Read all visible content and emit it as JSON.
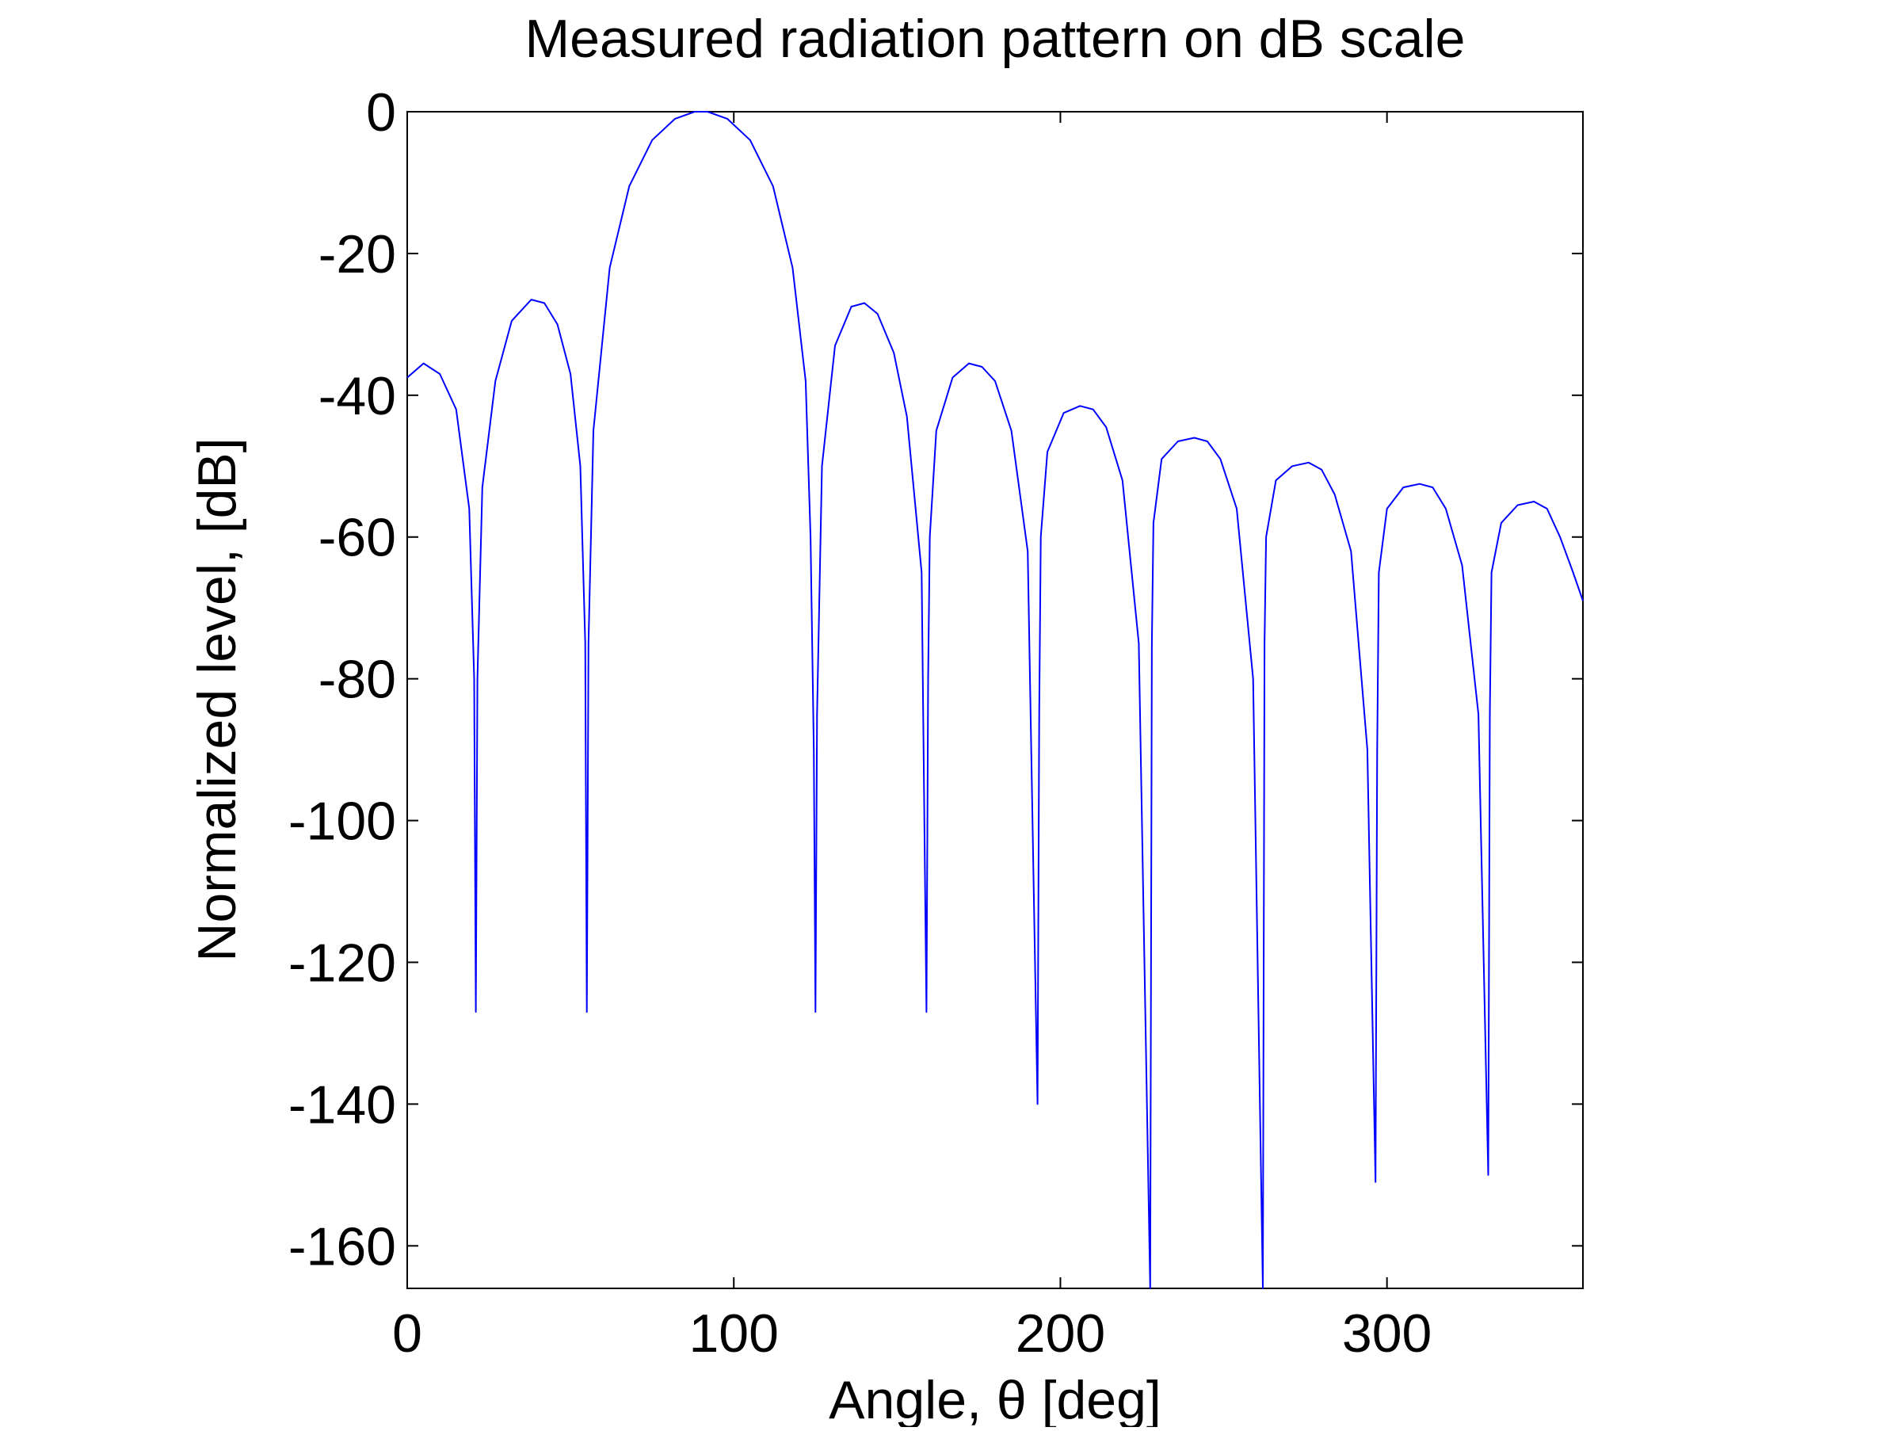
{
  "chart_data": {
    "type": "line",
    "title": "Measured radiation pattern on dB scale",
    "xlabel": "Angle, θ [deg]",
    "ylabel": "Normalized level, [dB]",
    "xlim": [
      0,
      360
    ],
    "ylim": [
      -166,
      0
    ],
    "x_ticks": [
      0,
      100,
      200,
      300
    ],
    "x_tick_labels": [
      "0",
      "100",
      "200",
      "300"
    ],
    "y_ticks": [
      0,
      -20,
      -40,
      -60,
      -80,
      -100,
      -120,
      -140,
      -160
    ],
    "y_tick_labels": [
      "0",
      "-20",
      "-40",
      "-60",
      "-80",
      "-100",
      "-120",
      "-140",
      "-160"
    ],
    "grid": false,
    "legend": "none",
    "series": [
      {
        "color": "#0000ff",
        "x": [
          0,
          5,
          10,
          15,
          19,
          20.5,
          21,
          21.5,
          23,
          27,
          32,
          38,
          42,
          46,
          50,
          53,
          54.5,
          55,
          55.5,
          57,
          62,
          68,
          75,
          82,
          88,
          90,
          92,
          98,
          105,
          112,
          118,
          122,
          123.5,
          124.5,
          125,
          125.5,
          127,
          131,
          136,
          140,
          144,
          149,
          153,
          157.5,
          159,
          159.5,
          160,
          162,
          167,
          172,
          176,
          180,
          185,
          190,
          193,
          193.5,
          194,
          196,
          201,
          206,
          210,
          214,
          219,
          224,
          227.5,
          228,
          228.5,
          231,
          236,
          241,
          245,
          249,
          254,
          259,
          262,
          262.5,
          263,
          266,
          271,
          276,
          280,
          284,
          289,
          294,
          296.5,
          297,
          297.5,
          300,
          305,
          310,
          314,
          318,
          323,
          328,
          331,
          331.5,
          332,
          335,
          340,
          345,
          349,
          353,
          357,
          360
        ],
        "y": [
          -37.5,
          -35.5,
          -37,
          -42,
          -56,
          -80,
          -127,
          -80,
          -53,
          -38,
          -29.5,
          -26.5,
          -27,
          -30,
          -37,
          -50,
          -75,
          -127,
          -75,
          -45,
          -22,
          -10.5,
          -4,
          -1,
          0,
          0,
          0,
          -1,
          -4,
          -10.5,
          -22,
          -38,
          -60,
          -90,
          -127,
          -85,
          -50,
          -33,
          -27.5,
          -27,
          -28.5,
          -34,
          -43,
          -65,
          -127,
          -80,
          -60,
          -45,
          -37.5,
          -35.5,
          -36,
          -38,
          -45,
          -62,
          -140,
          -85,
          -60,
          -48,
          -42.5,
          -41.5,
          -42,
          -44.5,
          -52,
          -75,
          -166,
          -75,
          -58,
          -49,
          -46.5,
          -46,
          -46.5,
          -49,
          -56,
          -80,
          -166,
          -75,
          -60,
          -52,
          -50,
          -49.5,
          -50.5,
          -54,
          -62,
          -90,
          -151,
          -90,
          -65,
          -56,
          -53,
          -52.5,
          -53,
          -56,
          -64,
          -85,
          -150,
          -85,
          -65,
          -58,
          -55.5,
          -55,
          -56,
          -60,
          -65,
          -69
        ]
      }
    ]
  }
}
